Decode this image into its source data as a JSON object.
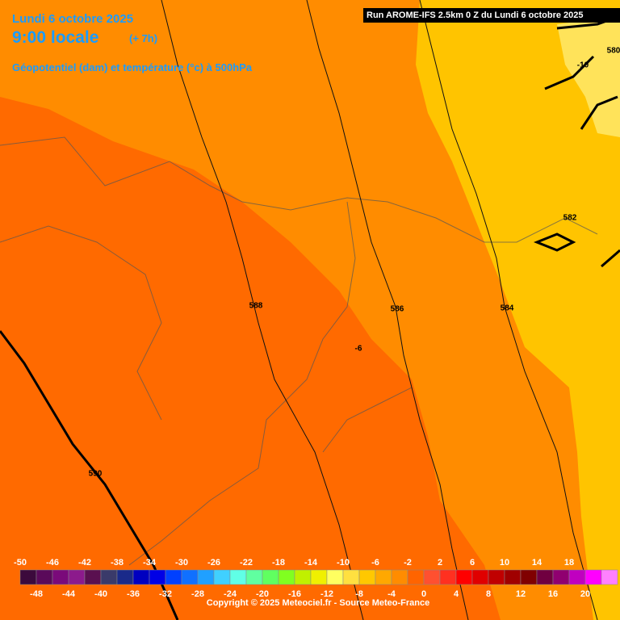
{
  "header": {
    "date": "Lundi 6 octobre 2025",
    "time": "9:00 locale",
    "offset": "(+ 7h)",
    "subtitle": "Géopotentiel (dam) et température (°c) à 500hPa"
  },
  "run_info": "Run AROME-IFS 2.5km 0 Z du Lundi 6 octobre 2025",
  "contour_labels": [
    "580",
    "-10",
    "582",
    "584",
    "586",
    "588",
    "-6",
    "590"
  ],
  "legend": {
    "labels": [
      -50,
      -48,
      -46,
      -44,
      -42,
      -40,
      -38,
      -36,
      -34,
      -32,
      -30,
      -28,
      -26,
      -24,
      -22,
      -20,
      -18,
      -16,
      -14,
      -12,
      -10,
      -8,
      -6,
      -4,
      -2,
      0,
      2,
      4,
      6,
      8,
      10,
      12,
      14,
      16,
      18,
      20
    ],
    "colors": [
      "#3c0a3c",
      "#5a0a5a",
      "#7a0a7a",
      "#8c1a8c",
      "#5a1050",
      "#3a3a6a",
      "#1a2a8a",
      "#0000c0",
      "#0000e6",
      "#0040ff",
      "#1070ff",
      "#20a0ff",
      "#40d0ff",
      "#60ffe6",
      "#60ffa0",
      "#60ff60",
      "#80ff20",
      "#c0f000",
      "#f0f000",
      "#ffff60",
      "#ffe040",
      "#ffc800",
      "#ffa800",
      "#ff8c00",
      "#ff6400",
      "#ff5030",
      "#ff3020",
      "#ff0000",
      "#e00000",
      "#c00000",
      "#a00000",
      "#800000",
      "#700040",
      "#900070",
      "#c000c0",
      "#ff00ff"
    ]
  },
  "copyright": "Copyright © 2025 Meteociel.fr - Source Meteo-France"
}
